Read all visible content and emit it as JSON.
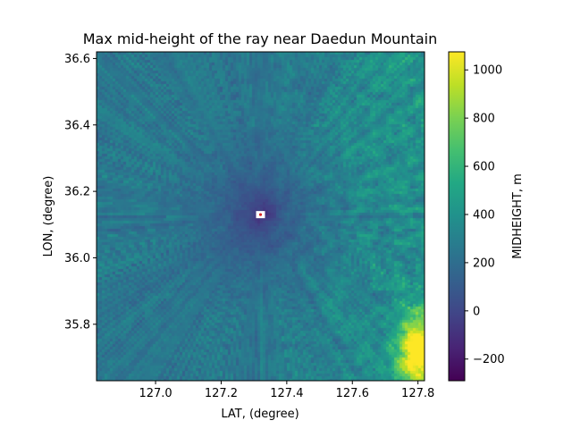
{
  "chart_data": {
    "type": "heatmap",
    "title": "Max mid-height of the ray near Daedun Mountain",
    "xlabel": "LAT, (degree)",
    "ylabel": "LON, (degree)",
    "colorbar_label": "MIDHEIGHT, m",
    "xlim": [
      126.82,
      127.82
    ],
    "ylim": [
      35.63,
      36.62
    ],
    "clim": [
      -290,
      1075
    ],
    "colormap": "viridis",
    "x_ticks": [
      127.0,
      127.2,
      127.4,
      127.6,
      127.8
    ],
    "x_tick_labels": [
      "127.0",
      "127.2",
      "127.4",
      "127.6",
      "127.8"
    ],
    "y_ticks": [
      35.8,
      36.0,
      36.2,
      36.4,
      36.6
    ],
    "y_tick_labels": [
      "35.8",
      "36.0",
      "36.2",
      "36.4",
      "36.6"
    ],
    "colorbar_ticks": [
      -200,
      0,
      200,
      400,
      600,
      800,
      1000
    ],
    "colorbar_tick_labels": [
      "−200",
      "0",
      "200",
      "400",
      "600",
      "800",
      "1000"
    ],
    "marker": {
      "x": 127.32,
      "y": 36.13,
      "color": "#d62728"
    },
    "grid": false
  }
}
